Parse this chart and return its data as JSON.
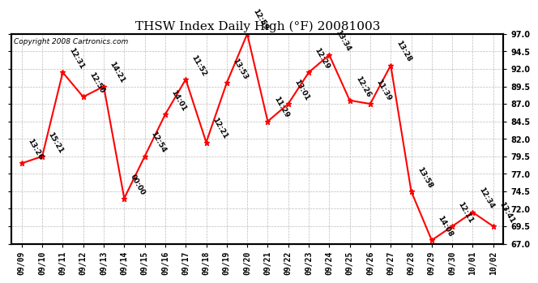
{
  "title": "THSW Index Daily High (°F) 20081003",
  "copyright": "Copyright 2008 Cartronics.com",
  "x_labels": [
    "09/09",
    "09/10",
    "09/11",
    "09/12",
    "09/13",
    "09/14",
    "09/15",
    "09/16",
    "09/17",
    "09/18",
    "09/19",
    "09/20",
    "09/21",
    "09/22",
    "09/23",
    "09/24",
    "09/25",
    "09/26",
    "09/27",
    "09/28",
    "09/29",
    "09/30",
    "10/01",
    "10/02"
  ],
  "y_values": [
    78.5,
    79.5,
    91.5,
    88.0,
    89.5,
    73.5,
    79.5,
    85.5,
    90.5,
    81.5,
    90.0,
    97.0,
    84.5,
    87.0,
    91.5,
    94.0,
    87.5,
    87.0,
    92.5,
    74.5,
    67.5,
    69.5,
    71.5,
    69.5
  ],
  "time_labels": [
    "13:26",
    "15:21",
    "12:31",
    "12:50",
    "14:21",
    "00:00",
    "12:54",
    "14:01",
    "11:52",
    "12:21",
    "13:53",
    "12:59",
    "11:29",
    "13:01",
    "12:29",
    "13:34",
    "12:26",
    "11:39",
    "13:28",
    "13:58",
    "14:08",
    "12:11",
    "12:34",
    "13:41"
  ],
  "ylim": [
    67.0,
    97.0
  ],
  "yticks": [
    67.0,
    69.5,
    72.0,
    74.5,
    77.0,
    79.5,
    82.0,
    84.5,
    87.0,
    89.5,
    92.0,
    94.5,
    97.0
  ],
  "line_color": "red",
  "marker_color": "red",
  "bg_color": "white",
  "grid_color": "#aaaaaa",
  "title_fontsize": 11,
  "tick_fontsize": 7,
  "annotation_fontsize": 6.5,
  "copyright_fontsize": 6.5
}
